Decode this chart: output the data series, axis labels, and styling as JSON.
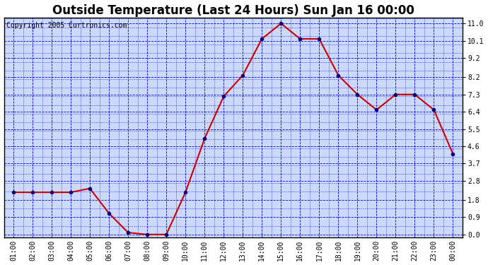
{
  "title": "Outside Temperature (Last 24 Hours) Sun Jan 16 00:00",
  "copyright": "Copyright 2005 Curtronics.com",
  "x_labels": [
    "01:00",
    "02:00",
    "03:00",
    "04:00",
    "05:00",
    "06:00",
    "07:00",
    "08:00",
    "09:00",
    "10:00",
    "11:00",
    "12:00",
    "13:00",
    "14:00",
    "15:00",
    "16:00",
    "17:00",
    "18:00",
    "19:00",
    "20:00",
    "21:00",
    "22:00",
    "23:00",
    "00:00"
  ],
  "y_values": [
    2.2,
    2.2,
    2.2,
    2.2,
    2.4,
    1.1,
    0.1,
    0.0,
    0.0,
    2.2,
    5.0,
    7.2,
    8.3,
    10.2,
    11.0,
    10.2,
    10.2,
    8.3,
    7.3,
    6.5,
    7.3,
    7.3,
    6.5,
    4.2
  ],
  "line_color": "#cc0000",
  "marker_color": "#000080",
  "bg_color": "#ccd9ff",
  "fig_color": "#ffffff",
  "grid_color_major": "#0000cc",
  "grid_color_minor": "#0000cc",
  "y_ticks": [
    0.0,
    0.9,
    1.8,
    2.8,
    3.7,
    4.6,
    5.5,
    6.4,
    7.3,
    8.2,
    9.2,
    10.1,
    11.0
  ],
  "ylim": [
    -0.15,
    11.3
  ],
  "xlim": [
    -0.5,
    23.5
  ],
  "title_fontsize": 12,
  "copyright_fontsize": 7,
  "tick_fontsize": 7,
  "marker_size": 3
}
